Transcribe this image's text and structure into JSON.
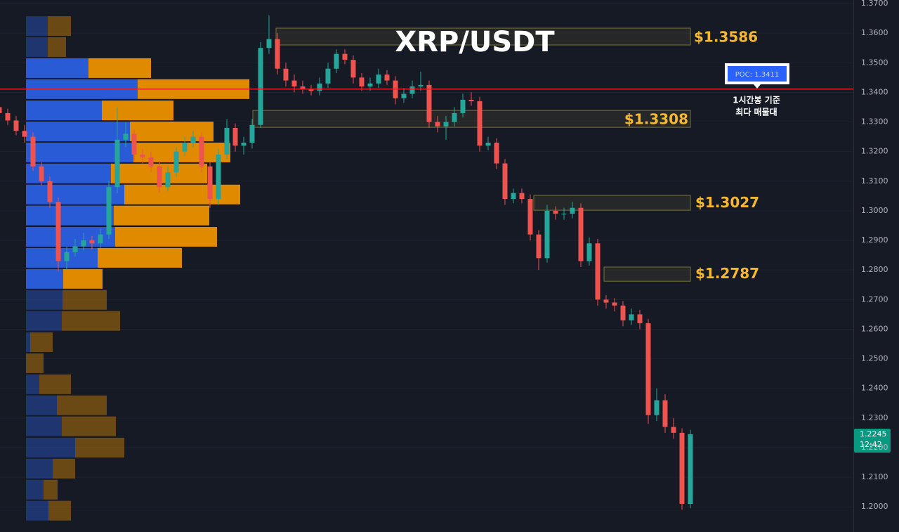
{
  "chart_data": {
    "type": "candlestick",
    "title": "XRP/USDT",
    "open": [
      1.335,
      1.333,
      1.3305,
      1.327,
      1.325,
      1.315,
      1.31,
      1.303,
      1.283,
      1.286,
      1.288,
      1.29,
      1.289,
      1.292,
      1.308,
      1.324,
      1.326,
      1.319,
      1.318,
      1.315,
      1.308,
      1.313,
      1.32,
      1.323,
      1.325,
      1.315,
      1.304,
      1.319,
      1.328,
      1.322,
      1.323,
      1.329,
      1.355,
      1.358,
      1.348,
      1.344,
      1.342,
      1.341,
      1.3405,
      1.343,
      1.348,
      1.353,
      1.351,
      1.345,
      1.342,
      1.343,
      1.346,
      1.344,
      1.338,
      1.3395,
      1.342,
      1.3425,
      1.33,
      1.3285,
      1.33,
      1.333,
      1.3375,
      1.337,
      1.322,
      1.323,
      1.316,
      1.304,
      1.306,
      1.304,
      1.292,
      1.284,
      1.3,
      1.299,
      1.299,
      1.301,
      1.283,
      1.289,
      1.27,
      1.269,
      1.268,
      1.263,
      1.265,
      1.262,
      1.231,
      1.236,
      1.227,
      1.225,
      1.201
    ],
    "high": [
      1.337,
      1.3345,
      1.332,
      1.329,
      1.3265,
      1.3165,
      1.3115,
      1.3045,
      1.288,
      1.2905,
      1.2925,
      1.2915,
      1.294,
      1.31,
      1.335,
      1.33,
      1.3275,
      1.321,
      1.32,
      1.317,
      1.315,
      1.3215,
      1.325,
      1.327,
      1.3265,
      1.3165,
      1.321,
      1.331,
      1.3295,
      1.325,
      1.331,
      1.357,
      1.366,
      1.36,
      1.35,
      1.346,
      1.344,
      1.3425,
      1.345,
      1.35,
      1.3545,
      1.3545,
      1.3525,
      1.3465,
      1.345,
      1.348,
      1.3475,
      1.3455,
      1.3415,
      1.344,
      1.347,
      1.344,
      1.332,
      1.332,
      1.335,
      1.3395,
      1.34,
      1.3385,
      1.325,
      1.3245,
      1.3175,
      1.3075,
      1.3075,
      1.3055,
      1.2935,
      1.302,
      1.3015,
      1.301,
      1.303,
      1.3025,
      1.291,
      1.2905,
      1.2715,
      1.2705,
      1.2695,
      1.267,
      1.2665,
      1.2635,
      1.24,
      1.238,
      1.23,
      1.2265,
      1.226
    ],
    "low": [
      1.331,
      1.329,
      1.3255,
      1.323,
      1.3135,
      1.3085,
      1.301,
      1.2795,
      1.28,
      1.2845,
      1.2865,
      1.287,
      1.2875,
      1.2905,
      1.306,
      1.3215,
      1.317,
      1.316,
      1.313,
      1.306,
      1.3065,
      1.3115,
      1.3185,
      1.3215,
      1.313,
      1.301,
      1.302,
      1.3175,
      1.32,
      1.319,
      1.321,
      1.328,
      1.353,
      1.346,
      1.342,
      1.34,
      1.3395,
      1.339,
      1.339,
      1.3415,
      1.3465,
      1.3495,
      1.343,
      1.3405,
      1.3405,
      1.3415,
      1.3425,
      1.336,
      1.3365,
      1.338,
      1.3405,
      1.328,
      1.3265,
      1.324,
      1.3285,
      1.3315,
      1.3355,
      1.32,
      1.3205,
      1.314,
      1.302,
      1.3025,
      1.3025,
      1.29,
      1.28,
      1.2825,
      1.297,
      1.297,
      1.2975,
      1.281,
      1.2815,
      1.268,
      1.267,
      1.266,
      1.261,
      1.2615,
      1.26,
      1.228,
      1.229,
      1.225,
      1.223,
      1.199,
      1.1995
    ],
    "close": [
      1.333,
      1.3305,
      1.327,
      1.325,
      1.315,
      1.31,
      1.303,
      1.283,
      1.286,
      1.288,
      1.29,
      1.289,
      1.292,
      1.308,
      1.324,
      1.326,
      1.319,
      1.318,
      1.315,
      1.308,
      1.313,
      1.32,
      1.323,
      1.325,
      1.315,
      1.304,
      1.319,
      1.328,
      1.322,
      1.323,
      1.329,
      1.355,
      1.358,
      1.348,
      1.344,
      1.342,
      1.341,
      1.3405,
      1.343,
      1.348,
      1.353,
      1.351,
      1.345,
      1.342,
      1.343,
      1.346,
      1.344,
      1.338,
      1.3395,
      1.342,
      1.3425,
      1.33,
      1.3285,
      1.33,
      1.333,
      1.3375,
      1.337,
      1.322,
      1.323,
      1.316,
      1.304,
      1.306,
      1.304,
      1.292,
      1.284,
      1.3,
      1.299,
      1.299,
      1.301,
      1.283,
      1.289,
      1.27,
      1.269,
      1.268,
      1.263,
      1.265,
      1.262,
      1.231,
      1.236,
      1.227,
      1.225,
      1.201,
      1.2245
    ],
    "up_color": "#26a69a",
    "down_color": "#ef5350",
    "ylim": [
      1.1915,
      1.3712
    ],
    "yticks": [
      {
        "value": 1.37,
        "label": "1.3700"
      },
      {
        "value": 1.36,
        "label": "1.3600"
      },
      {
        "value": 1.35,
        "label": "1.3500"
      },
      {
        "value": 1.34,
        "label": "1.3400"
      },
      {
        "value": 1.33,
        "label": "1.3300"
      },
      {
        "value": 1.32,
        "label": "1.3200"
      },
      {
        "value": 1.31,
        "label": "1.3100"
      },
      {
        "value": 1.3,
        "label": "1.3000"
      },
      {
        "value": 1.29,
        "label": "1.2900"
      },
      {
        "value": 1.28,
        "label": "1.2800"
      },
      {
        "value": 1.27,
        "label": "1.2700"
      },
      {
        "value": 1.26,
        "label": "1.2600"
      },
      {
        "value": 1.25,
        "label": "1.2500"
      },
      {
        "value": 1.24,
        "label": "1.2400"
      },
      {
        "value": 1.23,
        "label": "1.2300"
      },
      {
        "value": 1.22,
        "label": "1.2200"
      },
      {
        "value": 1.21,
        "label": "1.2100"
      },
      {
        "value": 1.2,
        "label": "1.2000"
      }
    ],
    "grid": true,
    "volume_profile": {
      "price": [
        1.3624,
        1.3553,
        1.3482,
        1.3411,
        1.3339,
        1.3268,
        1.3197,
        1.3126,
        1.3055,
        1.2984,
        1.2912,
        1.2841,
        1.277,
        1.2699,
        1.2628,
        1.2556,
        1.2485,
        1.2414,
        1.2343,
        1.2272,
        1.22,
        1.2129,
        1.2058,
        1.1987
      ],
      "buy": [
        31,
        31,
        89,
        159,
        108,
        148,
        153,
        121,
        140,
        125,
        127,
        102,
        53,
        52,
        51,
        6,
        0,
        19,
        44,
        51,
        70,
        38,
        25,
        32
      ],
      "sell": [
        33,
        26,
        89,
        159,
        102,
        119,
        138,
        137,
        165,
        136,
        145,
        120,
        56,
        63,
        83,
        32,
        25,
        45,
        71,
        77,
        70,
        32,
        20,
        32
      ],
      "buy_color": "#2a5bd7",
      "sell_color": "#e08a00"
    },
    "zones": [
      {
        "low": 1.356,
        "high": 1.3617,
        "value": 1.3586,
        "label": "$1.3586"
      },
      {
        "low": 1.3282,
        "high": 1.3339,
        "value": 1.3308,
        "label": "$1.3308"
      },
      {
        "low": 1.3002,
        "high": 1.3052,
        "value": 1.3027,
        "label": "$1.3027"
      },
      {
        "low": 1.2762,
        "high": 1.281,
        "value": 1.2787,
        "label": "$1.2787"
      }
    ],
    "poc": {
      "value": 1.3411,
      "label": "POC: 1.3411",
      "color": "#e0202a"
    },
    "annotation": [
      "1시간봉 기준",
      "최다 매물대"
    ],
    "last_price": 1.2245,
    "countdown": "12:42"
  }
}
